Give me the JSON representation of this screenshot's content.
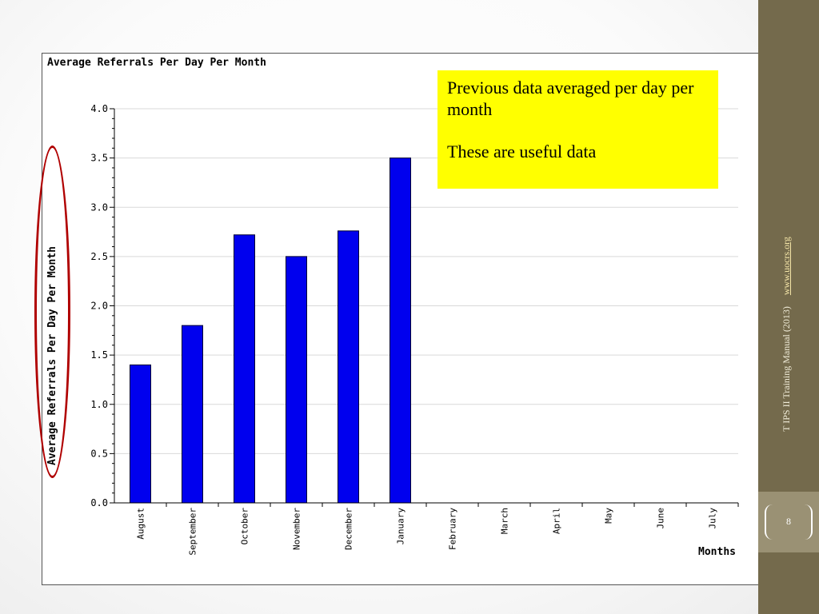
{
  "slide": {
    "callout": {
      "line1": "Previous data averaged per day per month",
      "line2": "These are useful data"
    },
    "sidebar": {
      "text": "T IPS II Training Manual (2013)",
      "link": "www.uocrs.org"
    },
    "page_number": "8"
  },
  "colors": {
    "bar": "#0000ee",
    "highlight": "#b00000",
    "callout": "#ffff00",
    "sidebar": "#746a4c"
  },
  "chart_data": {
    "type": "bar",
    "title": "Average Referrals Per Day Per Month",
    "xlabel": "Months",
    "ylabel": "Average Referrals Per Day Per Month",
    "categories": [
      "August",
      "September",
      "October",
      "November",
      "December",
      "January",
      "February",
      "March",
      "April",
      "May",
      "June",
      "July"
    ],
    "values": [
      1.4,
      1.8,
      2.72,
      2.5,
      2.76,
      3.5,
      null,
      null,
      null,
      null,
      null,
      null
    ],
    "ylim": [
      0,
      4.0
    ],
    "yticks": [
      "0.0",
      "0.5",
      "1.0",
      "1.5",
      "2.0",
      "2.5",
      "3.0",
      "3.5",
      "4.0"
    ],
    "grid": true,
    "legend": "none"
  }
}
